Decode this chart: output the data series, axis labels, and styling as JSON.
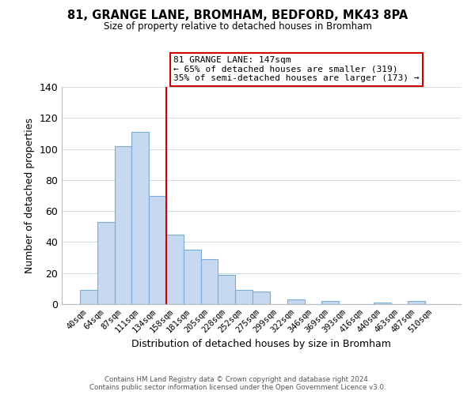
{
  "title": "81, GRANGE LANE, BROMHAM, BEDFORD, MK43 8PA",
  "subtitle": "Size of property relative to detached houses in Bromham",
  "xlabel": "Distribution of detached houses by size in Bromham",
  "ylabel": "Number of detached properties",
  "footer_line1": "Contains HM Land Registry data © Crown copyright and database right 2024.",
  "footer_line2": "Contains public sector information licensed under the Open Government Licence v3.0.",
  "bar_labels": [
    "40sqm",
    "64sqm",
    "87sqm",
    "111sqm",
    "134sqm",
    "158sqm",
    "181sqm",
    "205sqm",
    "228sqm",
    "252sqm",
    "275sqm",
    "299sqm",
    "322sqm",
    "346sqm",
    "369sqm",
    "393sqm",
    "416sqm",
    "440sqm",
    "463sqm",
    "487sqm",
    "510sqm"
  ],
  "bar_heights": [
    9,
    53,
    102,
    111,
    70,
    45,
    35,
    29,
    19,
    9,
    8,
    0,
    3,
    0,
    2,
    0,
    0,
    1,
    0,
    2,
    0
  ],
  "bar_color": "#c6d9f0",
  "bar_edge_color": "#7aadd4",
  "vline_x": 4.5,
  "vline_color": "#cc0000",
  "annotation_title": "81 GRANGE LANE: 147sqm",
  "annotation_line1": "← 65% of detached houses are smaller (319)",
  "annotation_line2": "35% of semi-detached houses are larger (173) →",
  "annotation_box_color": "#ffffff",
  "annotation_box_edge": "#cc0000",
  "ylim": [
    0,
    140
  ],
  "yticks": [
    0,
    20,
    40,
    60,
    80,
    100,
    120,
    140
  ],
  "background_color": "#ffffff",
  "grid_color": "#d0dce8"
}
